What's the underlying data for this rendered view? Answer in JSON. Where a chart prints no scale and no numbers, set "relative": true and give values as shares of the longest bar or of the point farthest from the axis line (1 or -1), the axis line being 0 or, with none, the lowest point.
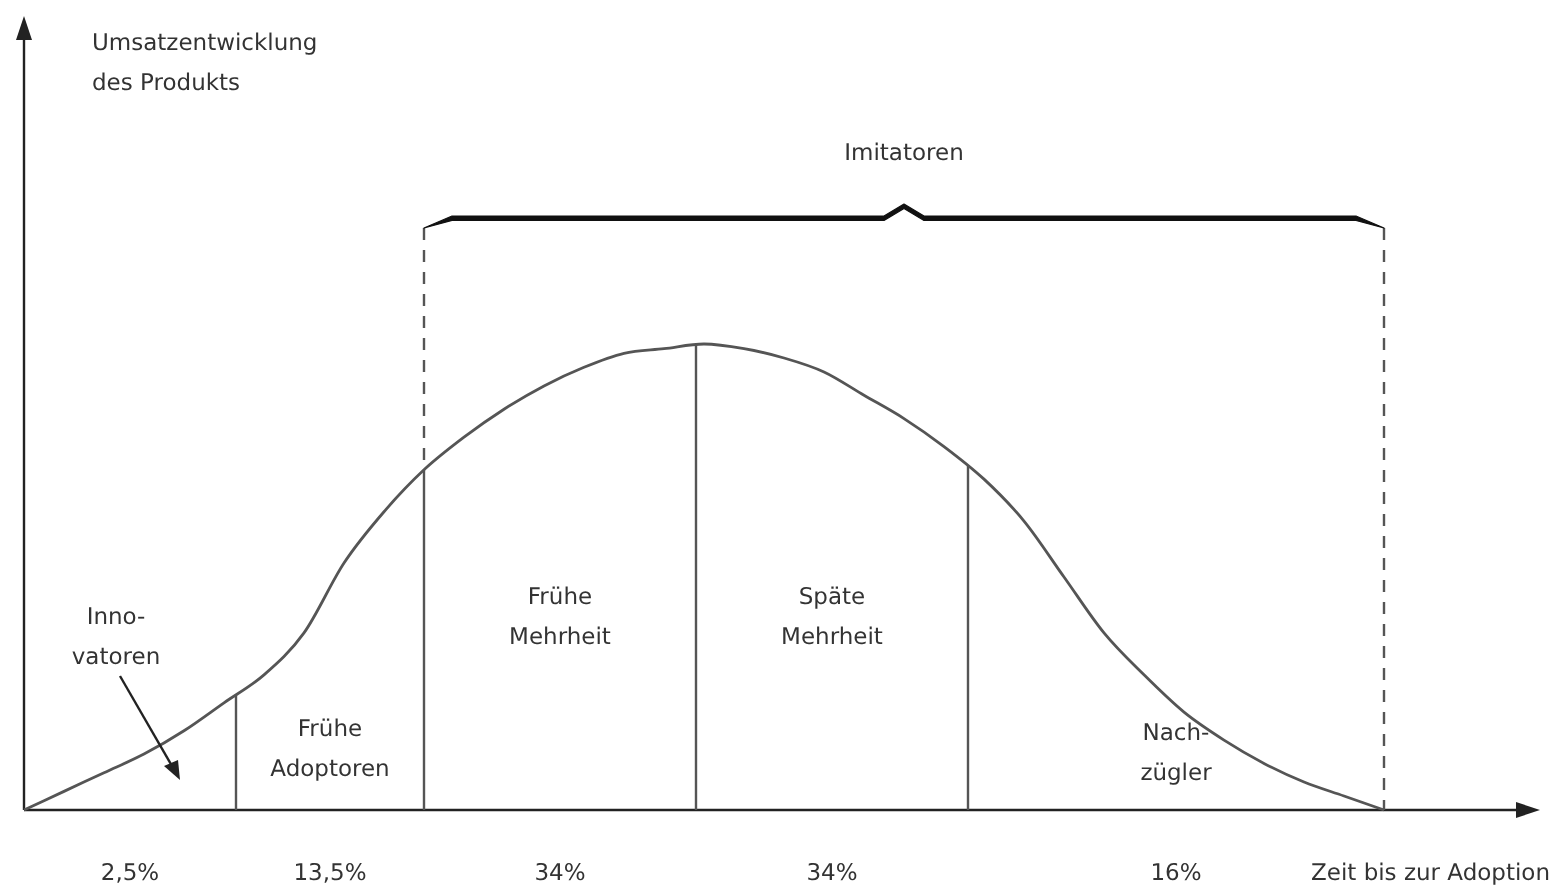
{
  "chart_data": {
    "type": "line",
    "relative": true,
    "xlabel": "Zeit bis zur Adoption",
    "categories": [
      null,
      null,
      null,
      null,
      null,
      null,
      null,
      null,
      null,
      null,
      null,
      null,
      null,
      null,
      null,
      null,
      null,
      null,
      null,
      null,
      null,
      null,
      null,
      null,
      null,
      null,
      null,
      null,
      null,
      null,
      null,
      null,
      null,
      null,
      null
    ],
    "series": [
      {
        "color": "#555555",
        "values": [
          0,
          0.04,
          0.08,
          0.12,
          0.17,
          0.23,
          0.29,
          0.38,
          0.53,
          0.64,
          0.73,
          0.8,
          0.86,
          0.91,
          0.95,
          0.98,
          0.99,
          1,
          0.99,
          0.97,
          0.94,
          0.89,
          0.84,
          0.78,
          0.71,
          0.62,
          0.5,
          0.38,
          0.29,
          0.21,
          0.15,
          0.1,
          0.06,
          0.03,
          0
        ]
      }
    ],
    "annotations": [
      "2,5%",
      "13,5%",
      "34%",
      "34%",
      "16%",
      "Inno-\nvatoren",
      "Frühe\nAdoptoren",
      "Frühe\nMehrheit",
      "Späte\nMehrheit",
      "Nach-\nzügler",
      "Imitatoren",
      "Umsatzentwicklung\ndes Produkts"
    ],
    "marker": "none",
    "line_style": "solid"
  }
}
